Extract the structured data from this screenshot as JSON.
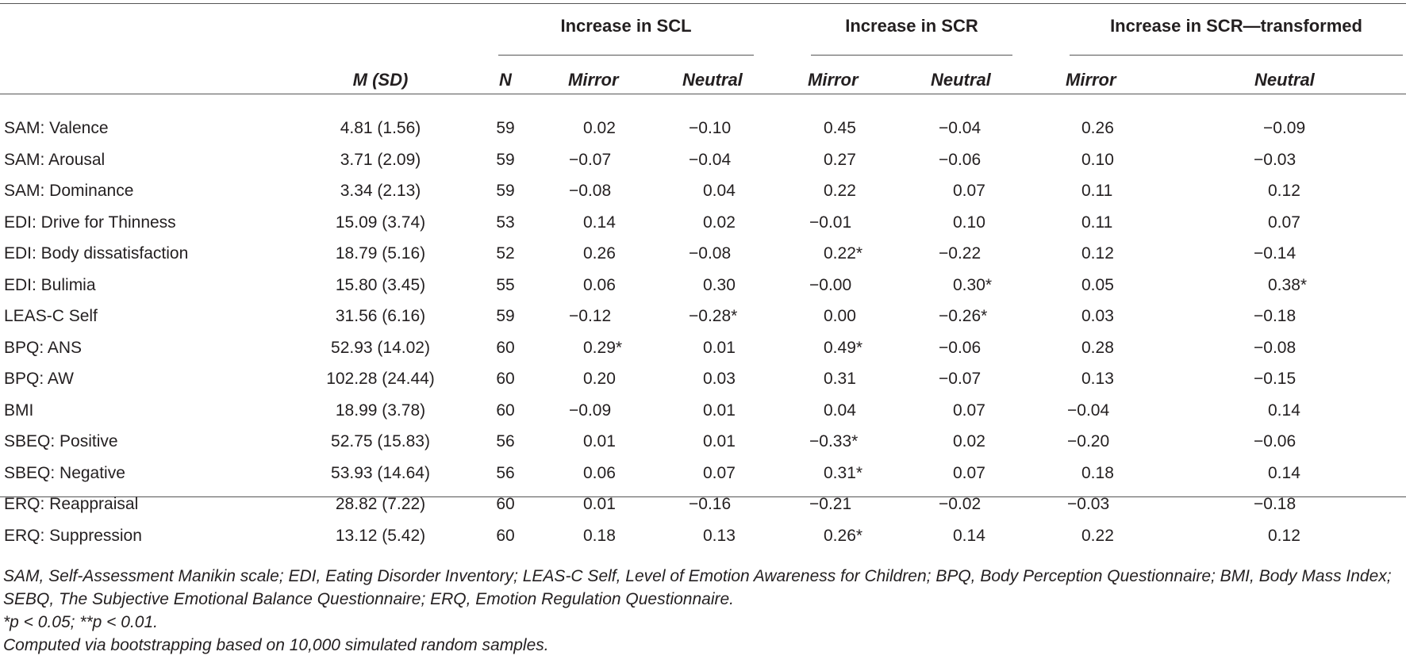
{
  "table": {
    "group_headers": [
      "Increase in SCL",
      "Increase in SCR",
      "Increase in SCR—transformed"
    ],
    "column_headers": [
      "M (SD)",
      "N",
      "Mirror",
      "Neutral",
      "Mirror",
      "Neutral",
      "Mirror",
      "Neutral"
    ],
    "rows": [
      {
        "label": "SAM: Valence",
        "msd": "4.81 (1.56)",
        "n": "59",
        "v": [
          "0.02",
          "−0.10",
          "0.45",
          "−0.04",
          "0.26",
          "−0.09"
        ]
      },
      {
        "label": "SAM: Arousal",
        "msd": "3.71 (2.09)",
        "n": "59",
        "v": [
          "−0.07",
          "−0.04",
          "0.27",
          "−0.06",
          "0.10",
          "−0.03"
        ]
      },
      {
        "label": "SAM: Dominance",
        "msd": "3.34 (2.13)",
        "n": "59",
        "v": [
          "−0.08",
          "0.04",
          "0.22",
          "0.07",
          "0.11",
          "0.12"
        ]
      },
      {
        "label": "EDI: Drive for Thinness",
        "msd": "15.09 (3.74)",
        "n": "53",
        "v": [
          "0.14",
          "0.02",
          "−0.01",
          "0.10",
          "0.11",
          "0.07"
        ]
      },
      {
        "label": "EDI: Body dissatisfaction",
        "msd": "18.79 (5.16)",
        "n": "52",
        "v": [
          "0.26",
          "−0.08",
          "0.22*",
          "−0.22",
          "0.12",
          "−0.14"
        ]
      },
      {
        "label": "EDI: Bulimia",
        "msd": "15.80 (3.45)",
        "n": "55",
        "v": [
          "0.06",
          "0.30",
          "−0.00",
          "0.30*",
          "0.05",
          "0.38*"
        ]
      },
      {
        "label": "LEAS-C Self",
        "msd": "31.56 (6.16)",
        "n": "59",
        "v": [
          "−0.12",
          "−0.28*",
          "0.00",
          "−0.26*",
          "0.03",
          "−0.18"
        ]
      },
      {
        "label": "BPQ: ANS",
        "msd": "52.93 (14.02)",
        "n": "60",
        "v": [
          "0.29*",
          "0.01",
          "0.49*",
          "−0.06",
          "0.28",
          "−0.08"
        ]
      },
      {
        "label": "BPQ: AW",
        "msd": "102.28 (24.44)",
        "n": "60",
        "v": [
          "0.20",
          "0.03",
          "0.31",
          "−0.07",
          "0.13",
          "−0.15"
        ]
      },
      {
        "label": "BMI",
        "msd": "18.99 (3.78)",
        "n": "60",
        "v": [
          "−0.09",
          "0.01",
          "0.04",
          "0.07",
          "−0.04",
          "0.14"
        ]
      },
      {
        "label": "SBEQ: Positive",
        "msd": "52.75 (15.83)",
        "n": "56",
        "v": [
          "0.01",
          "0.01",
          "−0.33*",
          "0.02",
          "−0.20",
          "−0.06"
        ]
      },
      {
        "label": "SBEQ: Negative",
        "msd": "53.93 (14.64)",
        "n": "56",
        "v": [
          "0.06",
          "0.07",
          "0.31*",
          "0.07",
          "0.18",
          "0.14"
        ]
      },
      {
        "label": "ERQ: Reappraisal",
        "msd": "28.82 (7.22)",
        "n": "60",
        "v": [
          "0.01",
          "−0.16",
          "−0.21",
          "−0.02",
          "−0.03",
          "−0.18"
        ]
      },
      {
        "label": "ERQ: Suppression",
        "msd": "13.12 (5.42)",
        "n": "60",
        "v": [
          "0.18",
          "0.13",
          "0.26*",
          "0.14",
          "0.22",
          "0.12"
        ]
      }
    ]
  },
  "notes": {
    "abbreviations": "SAM, Self-Assessment Manikin scale; EDI, Eating Disorder Inventory; LEAS-C Self, Level of Emotion Awareness for Children; BPQ, Body Perception Questionnaire; BMI, Body Mass Index; SEBQ, The Subjective Emotional Balance Questionnaire; ERQ, Emotion Regulation Questionnaire.",
    "significance": "*p < 0.05; **p < 0.01.",
    "method": "Computed via bootstrapping based on 10,000 simulated random samples."
  }
}
